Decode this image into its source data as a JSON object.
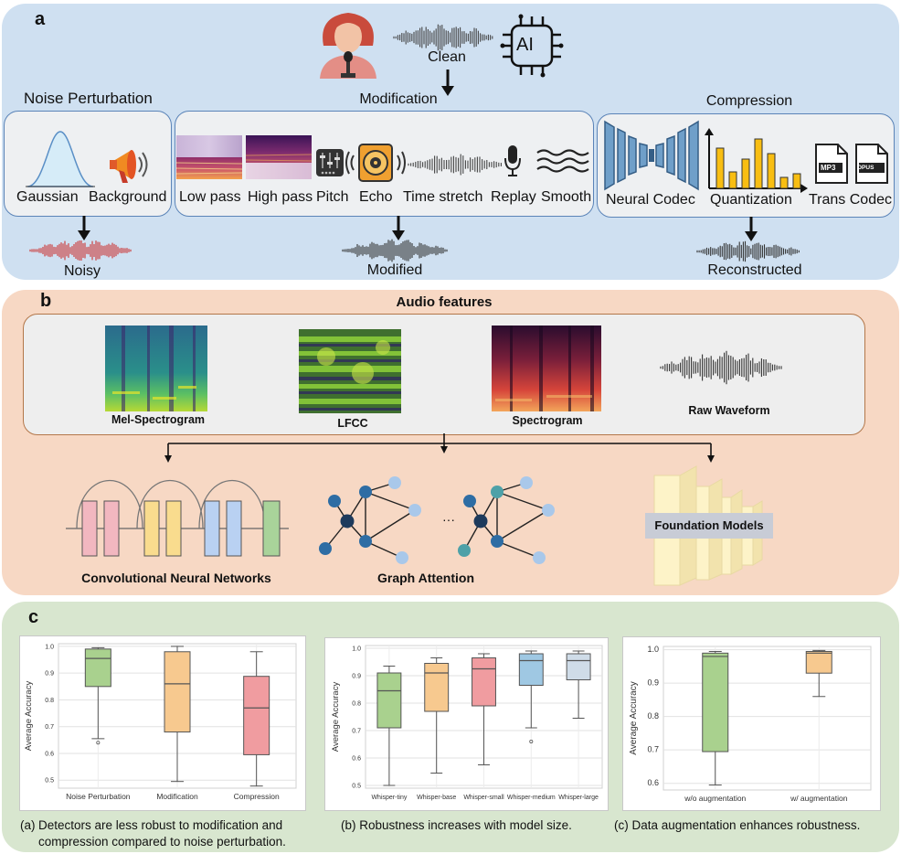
{
  "panel_a": {
    "label": "a",
    "clean": "Clean",
    "ai_badge": "AI",
    "noise": {
      "title": "Noise Perturbation",
      "items": [
        "Gaussian",
        "Background"
      ],
      "output": "Noisy"
    },
    "modification": {
      "title": "Modification",
      "items": [
        "Low pass",
        "High pass",
        "Pitch",
        "Echo",
        "Time stretch",
        "Replay",
        "Smooth"
      ],
      "output": "Modified"
    },
    "compression": {
      "title": "Compression",
      "items": [
        "Neural Codec",
        "Quantization",
        "Trans Codec"
      ],
      "output": "Reconstructed",
      "file_badges": [
        "MP3",
        "OPUS"
      ]
    }
  },
  "panel_b": {
    "label": "b",
    "features_title": "Audio features",
    "features": [
      "Mel-Spectrogram",
      "LFCC",
      "Spectrogram",
      "Raw Waveform"
    ],
    "models": [
      "Convolutional Neural Networks",
      "Graph Attention",
      "Foundation Models"
    ],
    "ellipsis": "···"
  },
  "panel_c": {
    "label": "c",
    "ylabel": "Average Accuracy",
    "captions": {
      "a_prefix": "(a)",
      "a_line1": "Detectors are less robust to modification and",
      "a_line2": "compression compared to noise perturbation.",
      "b": "(b) Robustness increases with model size.",
      "c": "(c) Data augmentation enhances robustness."
    }
  },
  "chart_data": [
    {
      "type": "box",
      "ylabel": "Average Accuracy",
      "ylim": [
        0.47,
        1.01
      ],
      "yticks": [
        0.5,
        0.6,
        0.7,
        0.8,
        0.9,
        1.0
      ],
      "ytick_labels": [
        "0.5",
        "0.6",
        "0.7",
        "0.8",
        "0.9",
        "1.0"
      ],
      "grid": true,
      "categories": [
        "Noise Perturbation",
        "Modification",
        "Compression"
      ],
      "boxes": [
        {
          "whislo": 0.655,
          "q1": 0.85,
          "med": 0.955,
          "q3": 0.99,
          "whishi": 0.995,
          "fliers": [
            0.64
          ],
          "color": "#a9d18e"
        },
        {
          "whislo": 0.495,
          "q1": 0.68,
          "med": 0.86,
          "q3": 0.98,
          "whishi": 1.0,
          "fliers": [],
          "color": "#f7c98f"
        },
        {
          "whislo": 0.478,
          "q1": 0.595,
          "med": 0.77,
          "q3": 0.888,
          "whishi": 0.98,
          "fliers": [],
          "color": "#f09ca0"
        }
      ]
    },
    {
      "type": "box",
      "ylabel": "Average Accuracy",
      "ylim": [
        0.49,
        1.01
      ],
      "yticks": [
        0.5,
        0.6,
        0.7,
        0.8,
        0.9,
        1.0
      ],
      "ytick_labels": [
        "0.5",
        "0.6",
        "0.7",
        "0.8",
        "0.9",
        "1.0"
      ],
      "grid": true,
      "categories": [
        "Whisper-tiny",
        "Whisper-base",
        "Whisper-small",
        "Whisper-medium",
        "Whisper-large"
      ],
      "boxes": [
        {
          "whislo": 0.5,
          "q1": 0.71,
          "med": 0.845,
          "q3": 0.91,
          "whishi": 0.935,
          "fliers": [],
          "color": "#a9d18e"
        },
        {
          "whislo": 0.545,
          "q1": 0.77,
          "med": 0.91,
          "q3": 0.945,
          "whishi": 0.965,
          "fliers": [],
          "color": "#f7c98f"
        },
        {
          "whislo": 0.575,
          "q1": 0.79,
          "med": 0.925,
          "q3": 0.965,
          "whishi": 0.98,
          "fliers": [],
          "color": "#f09ca0"
        },
        {
          "whislo": 0.71,
          "q1": 0.865,
          "med": 0.955,
          "q3": 0.98,
          "whishi": 0.99,
          "fliers": [
            0.66
          ],
          "color": "#9fc8e3"
        },
        {
          "whislo": 0.745,
          "q1": 0.885,
          "med": 0.955,
          "q3": 0.98,
          "whishi": 0.99,
          "fliers": [],
          "color": "#cfdce8"
        }
      ]
    },
    {
      "type": "box",
      "ylabel": "Average Accuracy",
      "ylim": [
        0.58,
        1.01
      ],
      "yticks": [
        0.6,
        0.7,
        0.8,
        0.9,
        1.0
      ],
      "ytick_labels": [
        "0.6",
        "0.7",
        "0.8",
        "0.9",
        "1.0"
      ],
      "grid": true,
      "categories": [
        "w/o augmentation",
        "w/ augmentation"
      ],
      "boxes": [
        {
          "whislo": 0.595,
          "q1": 0.695,
          "med": 0.98,
          "q3": 0.99,
          "whishi": 0.995,
          "fliers": [],
          "color": "#a9d18e"
        },
        {
          "whislo": 0.86,
          "q1": 0.93,
          "med": 0.99,
          "q3": 0.995,
          "whishi": 0.998,
          "fliers": [],
          "color": "#f7c98f"
        }
      ]
    }
  ]
}
